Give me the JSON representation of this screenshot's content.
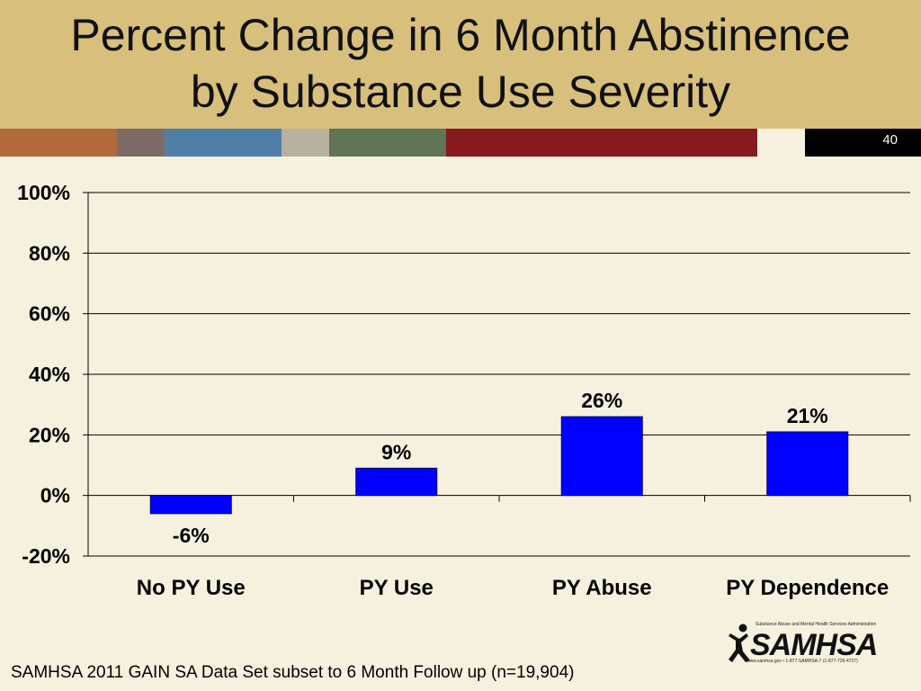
{
  "slide": {
    "title_line1": "Percent Change in 6 Month Abstinence",
    "title_line2": "by Substance Use Severity",
    "number": "40",
    "stripe_colors": [
      "#b26a3c",
      "#7d6b6a",
      "#4f7fa7",
      "#b9b19f",
      "#5f7556",
      "#861a1e",
      "#f6f1df",
      "#000000"
    ]
  },
  "chart_data": {
    "type": "bar",
    "categories": [
      "No PY Use",
      "PY Use",
      "PY Abuse",
      "PY Dependence"
    ],
    "values": [
      -6,
      9,
      26,
      21
    ],
    "data_labels": [
      "-6%",
      "9%",
      "26%",
      "21%"
    ],
    "ylim": [
      -20,
      100
    ],
    "yticks": [
      -20,
      0,
      20,
      40,
      60,
      80,
      100
    ],
    "ytick_labels": [
      "-20%",
      "0%",
      "20%",
      "40%",
      "60%",
      "80%",
      "100%"
    ],
    "grid": true,
    "bar_color": "#0000ff",
    "title": "",
    "xlabel": "",
    "ylabel": ""
  },
  "footnote": "SAMHSA 2011 GAIN SA Data Set subset to 6 Month Follow up (n=19,904)",
  "logo": {
    "agency": "Substance Abuse and Mental Health Services Administration",
    "word": "SAMHSA",
    "contact": "www.samhsa.gov • 1-877-SAMHSA-7 (1-877-726-4727)"
  }
}
